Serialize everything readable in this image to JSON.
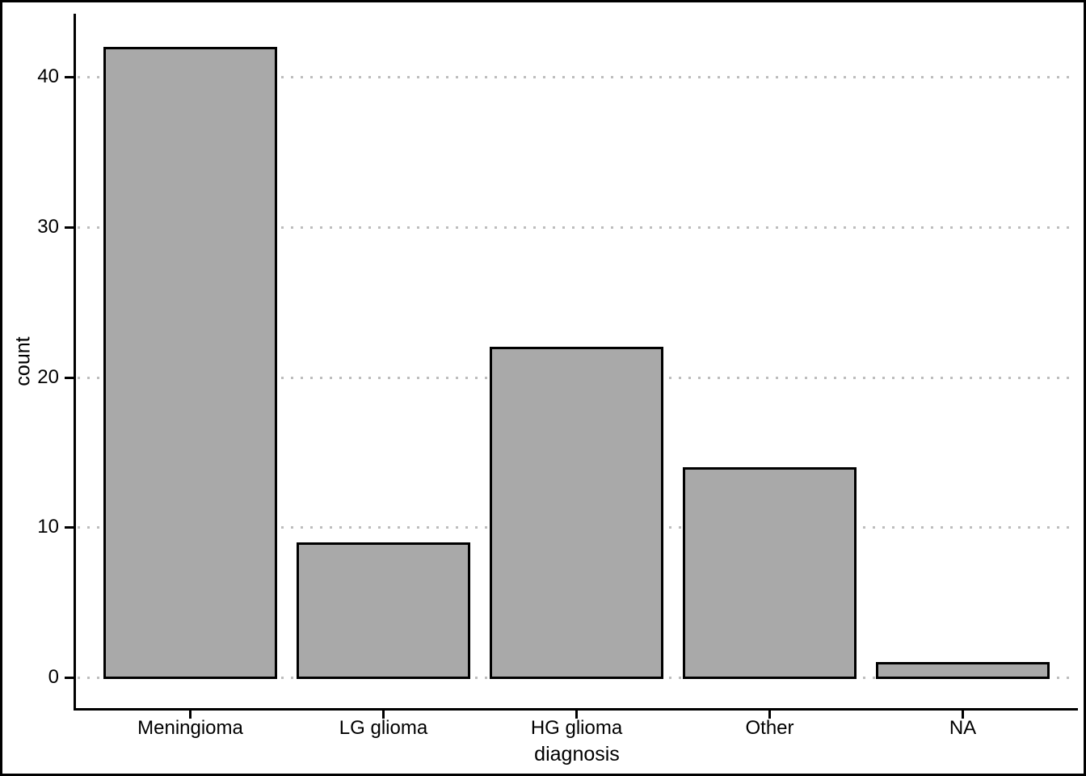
{
  "chart_data": {
    "type": "bar",
    "title": "",
    "xlabel": "diagnosis",
    "ylabel": "count",
    "categories": [
      "Meningioma",
      "LG glioma",
      "HG glioma",
      "Other",
      "NA"
    ],
    "values": [
      42,
      9,
      22,
      14,
      1
    ],
    "yticks": [
      0,
      10,
      20,
      30,
      40
    ],
    "ylim": [
      0,
      44.1
    ],
    "grid": "horizontal-major-dotted",
    "legend_position": "none",
    "bar_fill_color": "#a9a9a9",
    "bar_stroke_color": "#000000",
    "gridline_color": "#bdbdbd",
    "axis_color": "#000000",
    "background_color": "#ffffff",
    "frame_color": "#000000"
  }
}
